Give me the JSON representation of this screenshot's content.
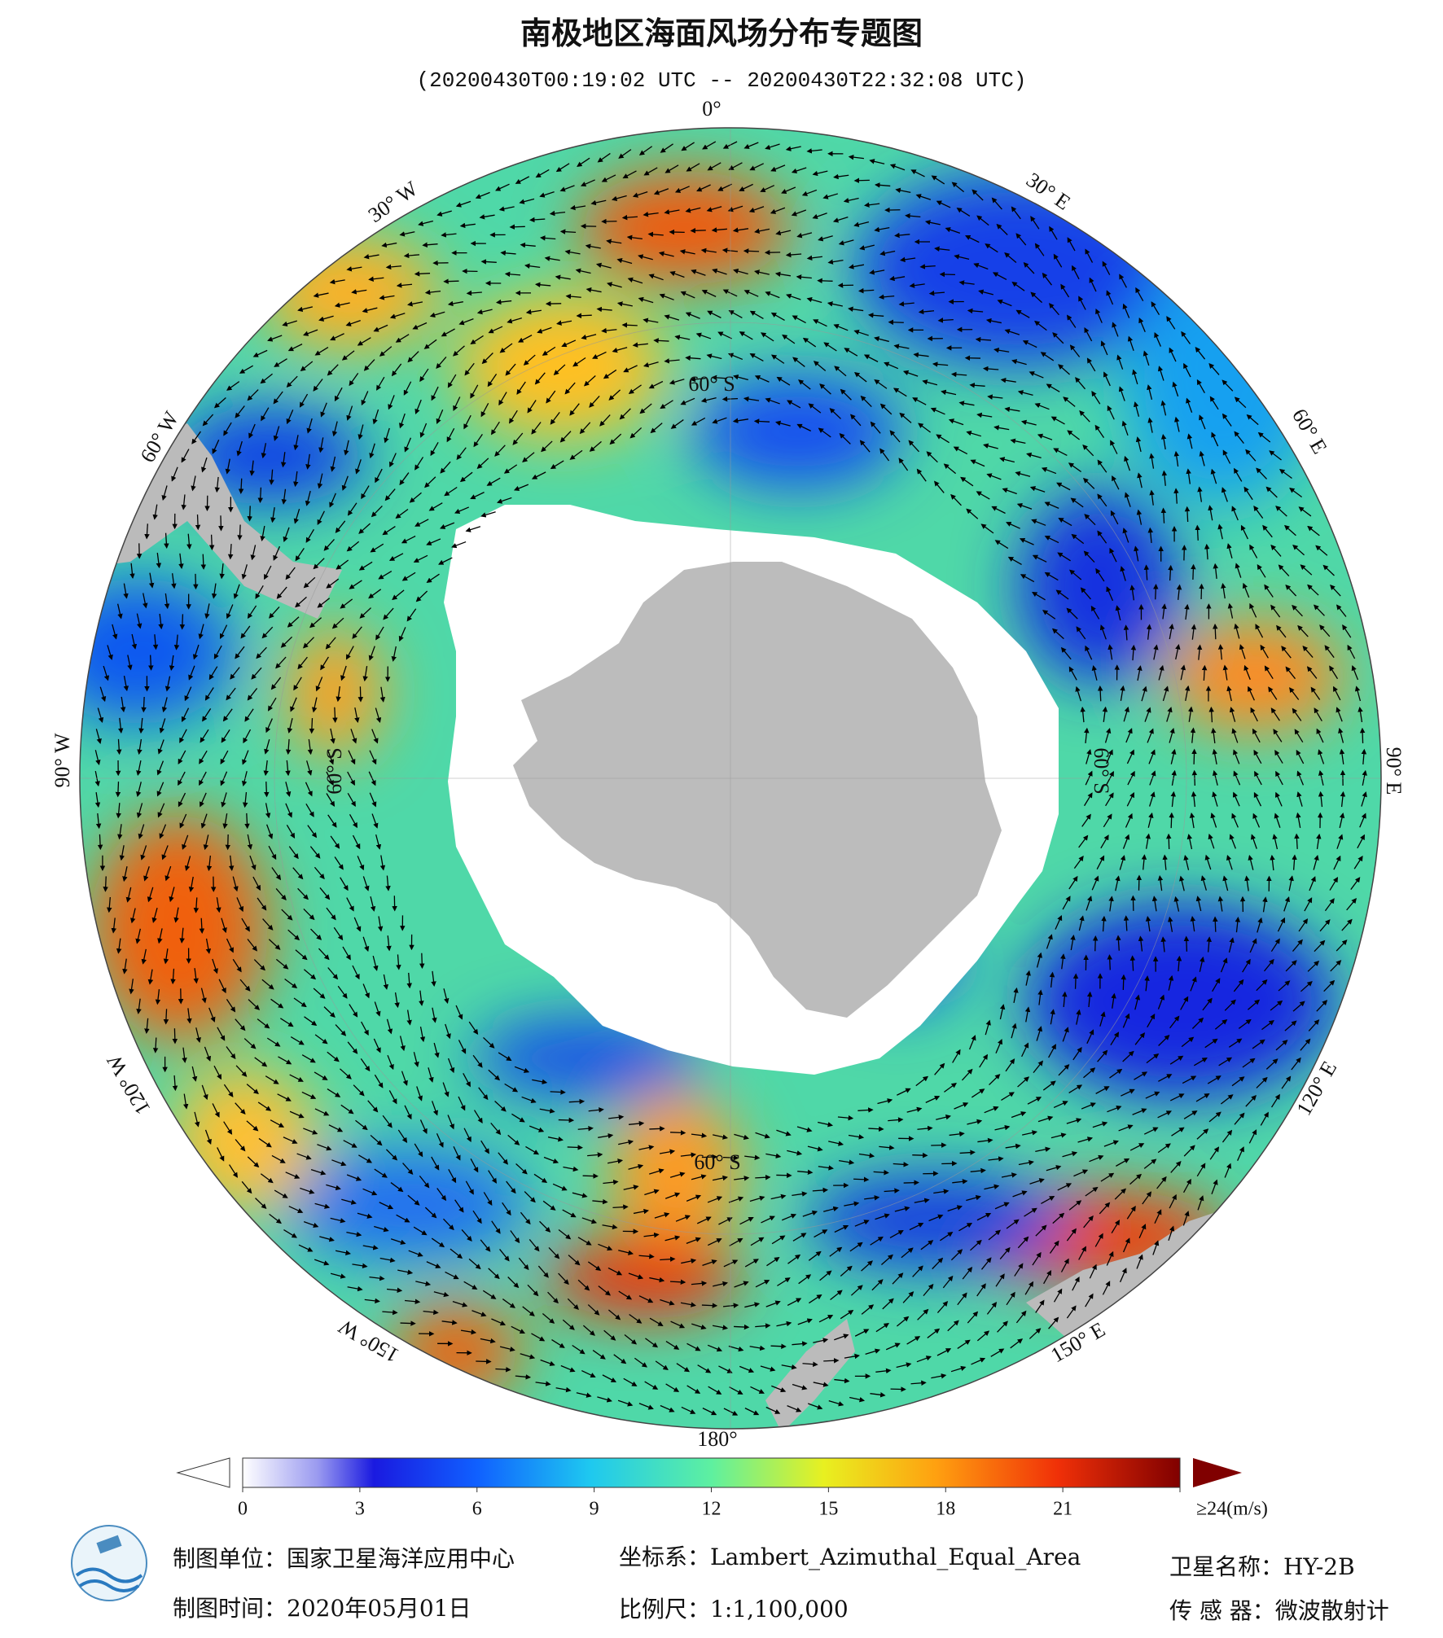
{
  "header": {
    "title": "南极地区海面风场分布专题图",
    "subtitle": "(20200430T00:19:02 UTC -- 20200430T22:32:08 UTC)"
  },
  "map": {
    "longitude_labels": [
      "0°",
      "30° E",
      "60° E",
      "90° E",
      "120° E",
      "150° E",
      "180°",
      "150° W",
      "120° W",
      "90° W",
      "60° W",
      "30° W"
    ],
    "latitude_labels": [
      "60° S",
      "60° S",
      "60° S",
      "60° S"
    ]
  },
  "colorbar": {
    "ticks": [
      0,
      3,
      6,
      9,
      12,
      15,
      18,
      21,
      {
        "value": 24,
        "label": "≥24(m/s)"
      }
    ],
    "range": [
      0,
      24
    ]
  },
  "footer": {
    "producer": "制图单位：国家卫星海洋应用中心",
    "date": "制图时间：2020年05月01日",
    "projection": "坐标系：Lambert_Azimuthal_Equal_Area",
    "scale": "比例尺：1:1,100,000",
    "satellite": "卫星名称：HY-2B",
    "sensor": "传 感 器：微波散射计"
  }
}
